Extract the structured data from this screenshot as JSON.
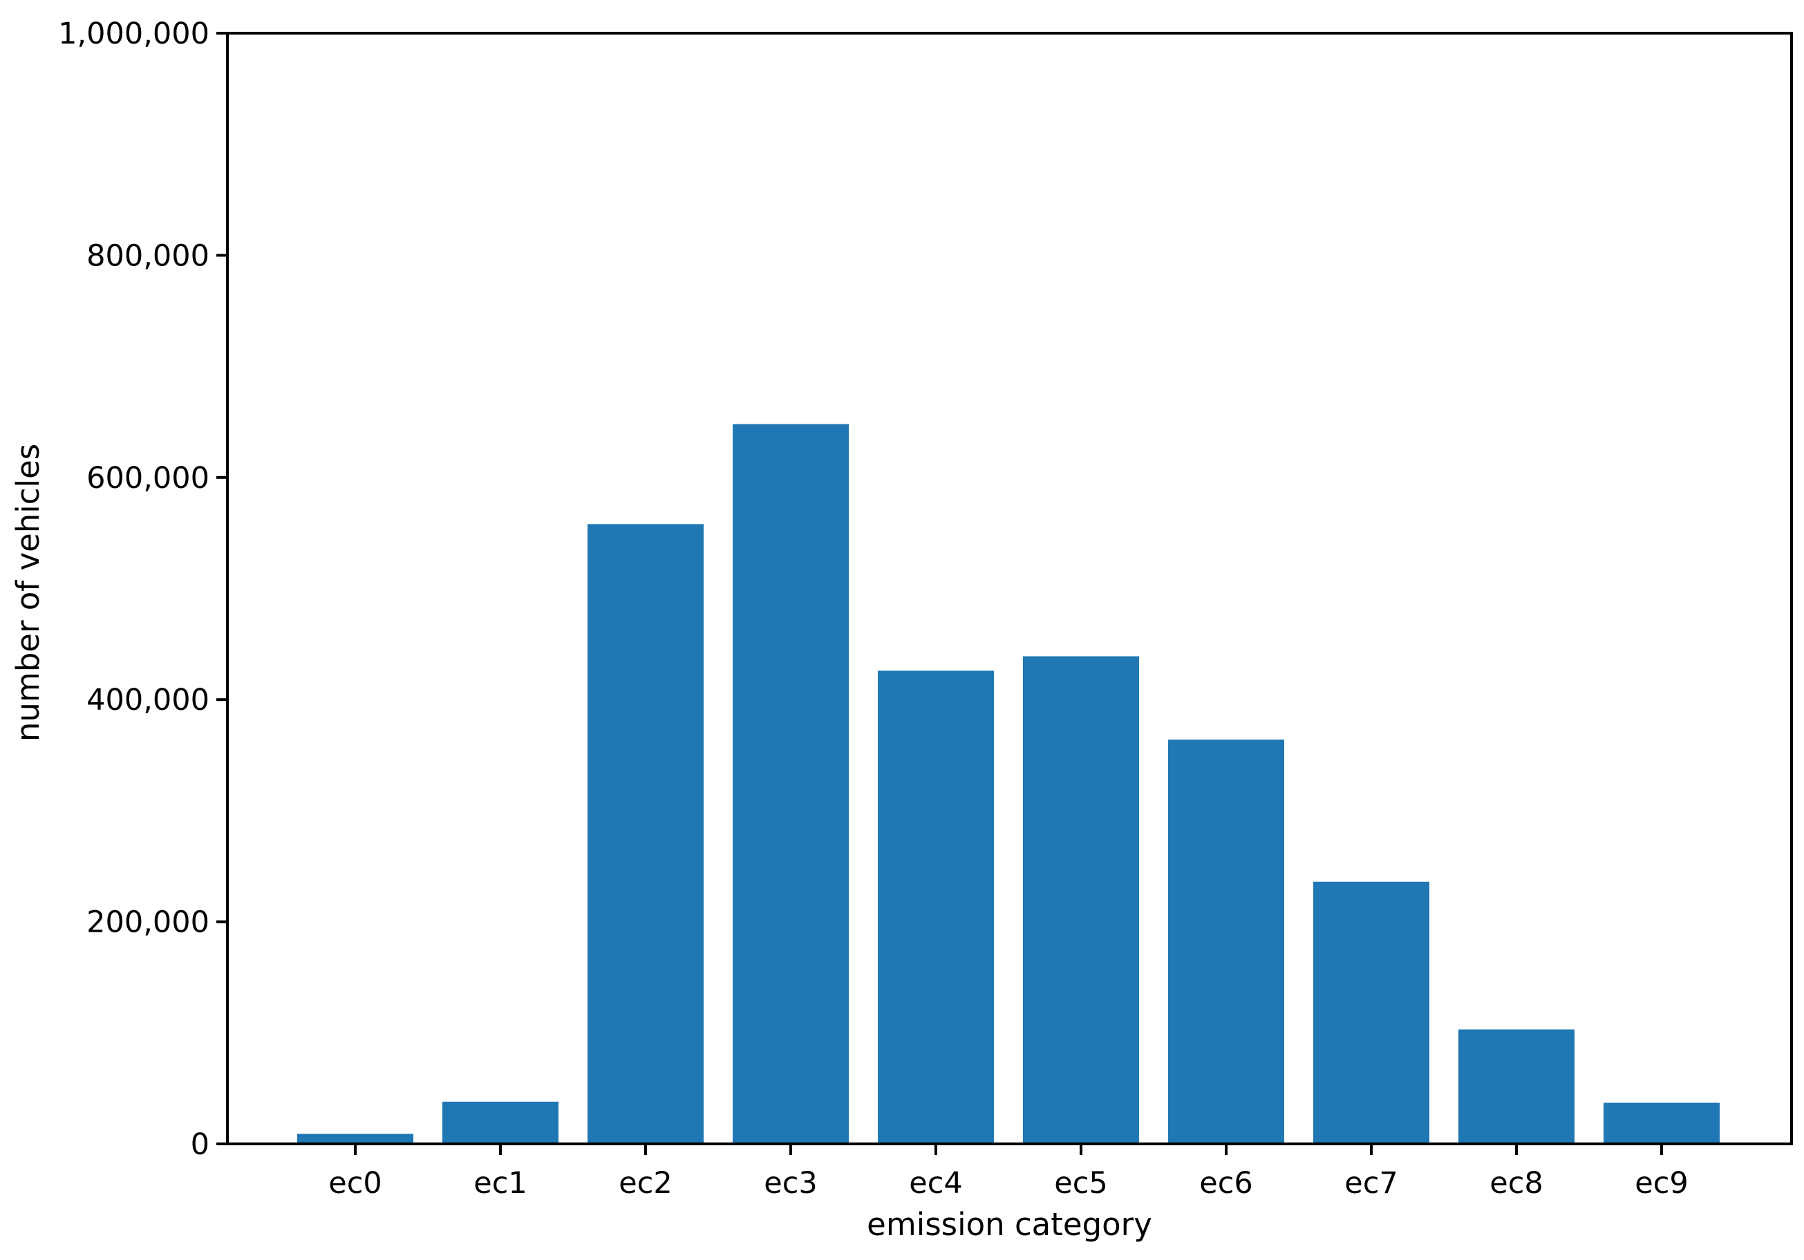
{
  "chart_data": {
    "type": "bar",
    "title": "",
    "xlabel": "emission category",
    "ylabel": "number of vehicles",
    "categories": [
      "ec0",
      "ec1",
      "ec2",
      "ec3",
      "ec4",
      "ec5",
      "ec6",
      "ec7",
      "ec8",
      "ec9"
    ],
    "values": [
      9000,
      38000,
      558000,
      648000,
      426000,
      439000,
      364000,
      236000,
      103000,
      37000
    ],
    "ylim": [
      0,
      1000000
    ],
    "yticks": [
      0,
      200000,
      400000,
      600000,
      800000,
      1000000
    ],
    "ytick_labels": [
      "0",
      "200,000",
      "400,000",
      "600,000",
      "800,000",
      "1,000,000"
    ],
    "grid": false,
    "legend": "none",
    "bar_color": "#1f77b4"
  }
}
